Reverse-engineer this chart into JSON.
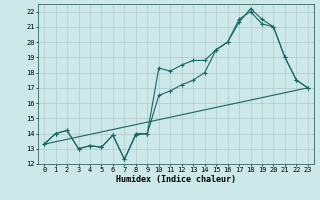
{
  "title": "",
  "xlabel": "Humidex (Indice chaleur)",
  "xlim": [
    -0.5,
    23.5
  ],
  "ylim": [
    12,
    22.5
  ],
  "xticks": [
    0,
    1,
    2,
    3,
    4,
    5,
    6,
    7,
    8,
    9,
    10,
    11,
    12,
    13,
    14,
    15,
    16,
    17,
    18,
    19,
    20,
    21,
    22,
    23
  ],
  "yticks": [
    12,
    13,
    14,
    15,
    16,
    17,
    18,
    19,
    20,
    21,
    22
  ],
  "bg_color": "#cce8e8",
  "grid_color": "#b0c8c8",
  "line_color": "#1a6666",
  "line1_x": [
    0,
    1,
    2,
    3,
    4,
    5,
    6,
    7,
    8,
    9,
    10,
    11,
    12,
    13,
    14,
    15,
    16,
    17,
    18,
    19,
    20,
    21,
    22,
    23
  ],
  "line1_y": [
    13.3,
    14.0,
    14.2,
    13.0,
    13.2,
    13.1,
    13.9,
    12.3,
    13.9,
    14.0,
    18.3,
    18.1,
    18.5,
    18.8,
    18.8,
    19.5,
    20.0,
    21.3,
    22.2,
    21.5,
    21.0,
    19.0,
    17.5,
    17.0
  ],
  "line2_x": [
    0,
    1,
    2,
    3,
    4,
    5,
    6,
    7,
    8,
    9,
    10,
    11,
    12,
    13,
    14,
    15,
    16,
    17,
    18,
    19,
    20,
    21,
    22,
    23
  ],
  "line2_y": [
    13.3,
    14.0,
    14.2,
    13.0,
    13.2,
    13.1,
    13.9,
    12.3,
    14.0,
    14.0,
    16.5,
    16.8,
    17.2,
    17.5,
    18.0,
    19.5,
    20.0,
    21.5,
    22.0,
    21.2,
    21.0,
    19.0,
    17.5,
    17.0
  ],
  "line3_x": [
    0,
    23
  ],
  "line3_y": [
    13.3,
    17.0
  ]
}
